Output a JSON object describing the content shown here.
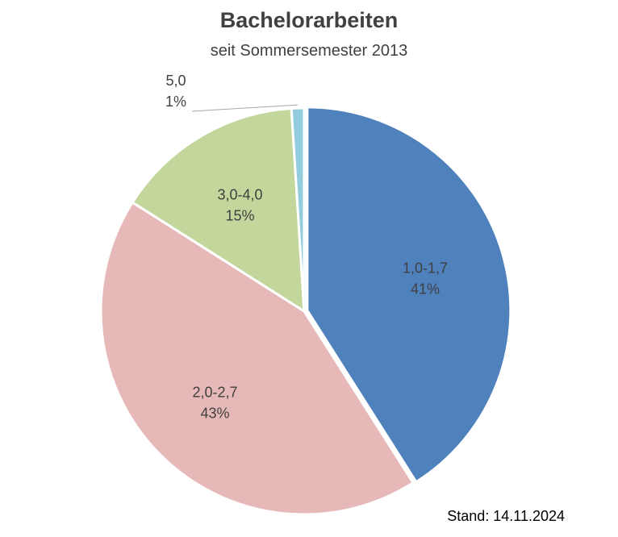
{
  "chart_data": {
    "type": "pie",
    "title": "Bachelorarbeiten",
    "subtitle": "seit Sommersemester 2013",
    "slices": [
      {
        "label": "1,0-1,7",
        "value": 41,
        "value_label": "41%",
        "color": "#4F81BD"
      },
      {
        "label": "2,0-2,7",
        "value": 43,
        "value_label": "43%",
        "color": "#E6B9B8"
      },
      {
        "label": "3,0-4,0",
        "value": 15,
        "value_label": "15%",
        "color": "#C3D69B"
      },
      {
        "label": "5,0",
        "value": 1,
        "value_label": "1%",
        "color": "#93CDDD"
      }
    ],
    "start_angle": "12 o'clock",
    "direction": "clockwise"
  },
  "footer": {
    "stand": "Stand: 14.11.2024"
  }
}
